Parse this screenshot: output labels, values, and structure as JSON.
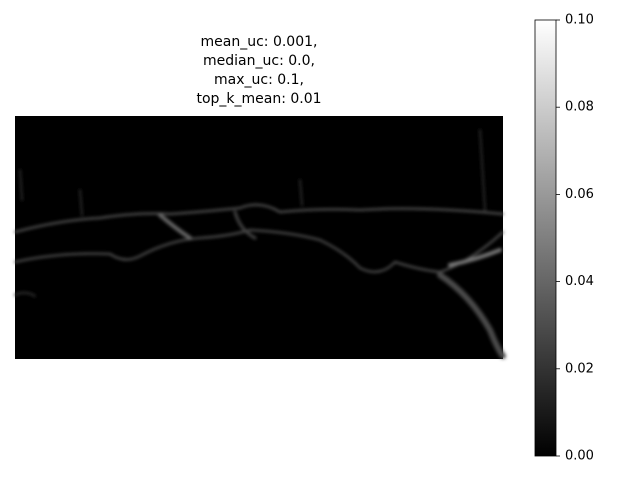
{
  "chart_data": {
    "type": "image",
    "title": [
      "mean_uc: 0.001,",
      "median_uc: 0.0,",
      "max_uc: 0.1,",
      "top_k_mean: 0.01"
    ],
    "colorbar": {
      "clim": [
        0,
        0.1
      ],
      "colors": [
        "#000000",
        "#ffffff"
      ],
      "ticks": [
        {
          "value": 0,
          "label": "0.00"
        },
        {
          "value": 0.02,
          "label": "0.02"
        },
        {
          "value": 0.04,
          "label": "0.04"
        },
        {
          "value": 0.06,
          "label": "0.06"
        },
        {
          "value": 0.08,
          "label": "0.08"
        },
        {
          "value": 0.1,
          "label": "0.10"
        }
      ]
    }
  }
}
